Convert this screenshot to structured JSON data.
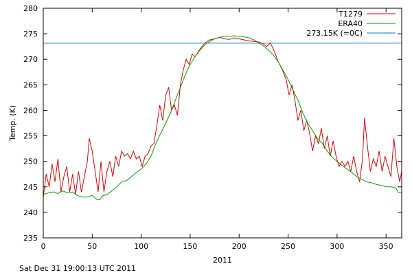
{
  "chart_data": {
    "type": "line",
    "title": "",
    "xlabel": "2011",
    "ylabel": "Temp. (K)",
    "xlim": [
      0,
      366
    ],
    "ylim": [
      235,
      280
    ],
    "x_ticks": [
      0,
      50,
      100,
      150,
      200,
      250,
      300,
      350
    ],
    "y_ticks": [
      235,
      240,
      245,
      250,
      255,
      260,
      265,
      270,
      275,
      280
    ],
    "grid": false,
    "legend_position": "top-right",
    "series": [
      {
        "name": "T1279",
        "color": "#e00000",
        "points": [
          [
            0,
            243
          ],
          [
            3,
            247.5
          ],
          [
            6,
            245
          ],
          [
            9,
            249.5
          ],
          [
            12,
            246
          ],
          [
            15,
            250.5
          ],
          [
            18,
            244
          ],
          [
            21,
            247
          ],
          [
            24,
            249
          ],
          [
            27,
            244
          ],
          [
            30,
            247.5
          ],
          [
            33,
            243.5
          ],
          [
            36,
            248
          ],
          [
            39,
            244
          ],
          [
            42,
            247
          ],
          [
            45,
            250
          ],
          [
            47,
            254.5
          ],
          [
            50,
            252
          ],
          [
            53,
            248
          ],
          [
            56,
            244
          ],
          [
            59,
            250
          ],
          [
            62,
            244
          ],
          [
            65,
            248
          ],
          [
            68,
            250
          ],
          [
            71,
            247
          ],
          [
            74,
            251
          ],
          [
            77,
            249
          ],
          [
            80,
            252
          ],
          [
            83,
            251
          ],
          [
            86,
            251.5
          ],
          [
            89,
            250.5
          ],
          [
            92,
            252
          ],
          [
            95,
            250.5
          ],
          [
            98,
            251
          ],
          [
            101,
            249
          ],
          [
            104,
            251
          ],
          [
            107,
            251.5
          ],
          [
            110,
            253
          ],
          [
            113,
            253.5
          ],
          [
            116,
            257
          ],
          [
            119,
            261
          ],
          [
            122,
            258
          ],
          [
            125,
            263
          ],
          [
            128,
            264.5
          ],
          [
            131,
            260
          ],
          [
            134,
            261
          ],
          [
            137,
            259
          ],
          [
            140,
            265
          ],
          [
            143,
            268
          ],
          [
            146,
            270
          ],
          [
            149,
            269
          ],
          [
            152,
            271
          ],
          [
            155,
            270.5
          ],
          [
            160,
            272
          ],
          [
            165,
            273.2
          ],
          [
            170,
            273.8
          ],
          [
            175,
            274
          ],
          [
            180,
            274.3
          ],
          [
            185,
            274
          ],
          [
            190,
            273.9
          ],
          [
            195,
            274.2
          ],
          [
            200,
            274
          ],
          [
            205,
            273.8
          ],
          [
            210,
            273.6
          ],
          [
            215,
            273.5
          ],
          [
            220,
            273.4
          ],
          [
            225,
            273
          ],
          [
            228,
            272.5
          ],
          [
            232,
            273.2
          ],
          [
            236,
            271.5
          ],
          [
            240,
            269.5
          ],
          [
            244,
            268
          ],
          [
            248,
            266
          ],
          [
            251,
            263
          ],
          [
            254,
            265
          ],
          [
            257,
            262
          ],
          [
            260,
            258
          ],
          [
            263,
            260
          ],
          [
            266,
            256
          ],
          [
            269,
            258
          ],
          [
            272,
            255.5
          ],
          [
            275,
            252
          ],
          [
            278,
            255
          ],
          [
            281,
            253.5
          ],
          [
            284,
            256.5
          ],
          [
            287,
            252.5
          ],
          [
            290,
            255
          ],
          [
            293,
            251
          ],
          [
            296,
            254
          ],
          [
            299,
            251
          ],
          [
            302,
            249
          ],
          [
            305,
            250
          ],
          [
            308,
            249
          ],
          [
            311,
            250
          ],
          [
            314,
            248
          ],
          [
            317,
            251
          ],
          [
            320,
            248
          ],
          [
            323,
            246
          ],
          [
            326,
            250.5
          ],
          [
            328,
            258.5
          ],
          [
            331,
            253
          ],
          [
            334,
            248
          ],
          [
            337,
            250.5
          ],
          [
            340,
            249
          ],
          [
            343,
            252
          ],
          [
            346,
            248
          ],
          [
            349,
            251
          ],
          [
            352,
            249
          ],
          [
            355,
            247
          ],
          [
            358,
            254.5
          ],
          [
            361,
            249
          ],
          [
            364,
            246
          ],
          [
            366,
            248
          ]
        ]
      },
      {
        "name": "ERA40",
        "color": "#00a000",
        "points": [
          [
            0,
            243.5
          ],
          [
            5,
            243.8
          ],
          [
            10,
            244
          ],
          [
            15,
            243.7
          ],
          [
            20,
            244.2
          ],
          [
            25,
            243.8
          ],
          [
            30,
            244
          ],
          [
            35,
            243.3
          ],
          [
            40,
            243
          ],
          [
            45,
            243
          ],
          [
            50,
            243.3
          ],
          [
            55,
            242.5
          ],
          [
            58,
            242.5
          ],
          [
            60,
            243.2
          ],
          [
            65,
            243.5
          ],
          [
            70,
            244.2
          ],
          [
            75,
            245
          ],
          [
            80,
            246
          ],
          [
            85,
            246.2
          ],
          [
            90,
            247
          ],
          [
            95,
            247.8
          ],
          [
            100,
            248.5
          ],
          [
            105,
            249.5
          ],
          [
            110,
            251
          ],
          [
            115,
            253.5
          ],
          [
            120,
            255.5
          ],
          [
            125,
            257.5
          ],
          [
            130,
            259.5
          ],
          [
            135,
            262
          ],
          [
            140,
            264.5
          ],
          [
            145,
            267
          ],
          [
            150,
            269
          ],
          [
            155,
            270.5
          ],
          [
            160,
            271.8
          ],
          [
            165,
            272.8
          ],
          [
            170,
            273.5
          ],
          [
            175,
            274
          ],
          [
            180,
            274.3
          ],
          [
            185,
            274.5
          ],
          [
            190,
            274.5
          ],
          [
            195,
            274.6
          ],
          [
            200,
            274.5
          ],
          [
            205,
            274.4
          ],
          [
            210,
            274.2
          ],
          [
            215,
            273.8
          ],
          [
            220,
            273.2
          ],
          [
            225,
            272.6
          ],
          [
            230,
            271.8
          ],
          [
            235,
            270.8
          ],
          [
            240,
            269.5
          ],
          [
            245,
            267.8
          ],
          [
            250,
            266
          ],
          [
            255,
            264
          ],
          [
            260,
            262
          ],
          [
            265,
            259.5
          ],
          [
            270,
            257.5
          ],
          [
            275,
            256
          ],
          [
            280,
            254.5
          ],
          [
            285,
            253.5
          ],
          [
            290,
            252
          ],
          [
            295,
            250.8
          ],
          [
            300,
            250
          ],
          [
            305,
            249.2
          ],
          [
            310,
            248.5
          ],
          [
            315,
            247.8
          ],
          [
            320,
            247
          ],
          [
            325,
            246.5
          ],
          [
            330,
            246
          ],
          [
            335,
            245.8
          ],
          [
            340,
            245.5
          ],
          [
            345,
            245.3
          ],
          [
            350,
            245
          ],
          [
            355,
            245
          ],
          [
            360,
            244.8
          ],
          [
            363,
            243.8
          ],
          [
            366,
            244
          ]
        ]
      },
      {
        "name": "273.15K (=0C)",
        "color": "#0070c0",
        "points": [
          [
            0,
            273.15
          ],
          [
            366,
            273.15
          ]
        ]
      }
    ]
  },
  "footer": {
    "timestamp": "Sat Dec 31 19:00:13 UTC 2011"
  }
}
